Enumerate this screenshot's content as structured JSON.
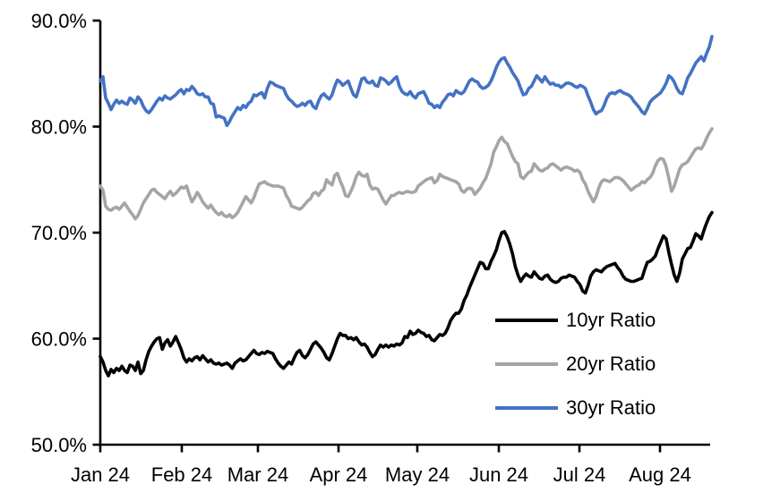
{
  "chart_data": {
    "type": "line",
    "title": "",
    "background": "#FFFFFF",
    "grid": false,
    "legend_position": "inside-lower-right",
    "x_axis": {
      "tick_labels": [
        "Jan 24",
        "Feb 24",
        "Mar 24",
        "Apr 24",
        "May 24",
        "Jun 24",
        "Jul 24",
        "Aug 24"
      ],
      "unit": "month",
      "points_frequency": "daily samples, Jan 2024 through late Aug 2024"
    },
    "y_axis": {
      "tick_labels": [
        "90.0%",
        "80.0%",
        "70.0%",
        "60.0%",
        "50.0%"
      ],
      "tick_values": [
        90,
        80,
        70,
        60,
        50
      ],
      "min": 50,
      "max": 90,
      "format": "percent"
    },
    "series": [
      {
        "name": "10yr Ratio",
        "color": "#000000",
        "values": [
          58.3,
          57.8,
          57.0,
          56.5,
          57.1,
          56.8,
          57.2,
          57.0,
          57.4,
          57.0,
          56.8,
          57.5,
          57.4,
          57.0,
          57.8,
          56.7,
          57.0,
          58.0,
          58.8,
          59.3,
          59.7,
          60.0,
          60.1,
          59.0,
          59.6,
          59.9,
          59.3,
          59.7,
          60.2,
          59.6,
          59.0,
          58.2,
          57.8,
          58.1,
          57.9,
          58.2,
          58.3,
          58.0,
          58.4,
          58.1,
          57.8,
          58.0,
          57.7,
          57.6,
          57.7,
          57.5,
          57.6,
          57.7,
          57.5,
          57.2,
          57.7,
          57.9,
          58.1,
          57.9,
          58.0,
          58.3,
          58.6,
          58.9,
          58.6,
          58.5,
          58.7,
          58.6,
          58.8,
          58.7,
          58.6,
          58.1,
          57.7,
          57.4,
          57.2,
          57.5,
          57.8,
          57.6,
          58.2,
          58.7,
          58.9,
          58.4,
          58.2,
          58.5,
          59.0,
          59.5,
          59.7,
          59.4,
          59.1,
          58.7,
          58.2,
          58.0,
          58.6,
          59.3,
          60.0,
          60.5,
          60.3,
          60.3,
          60.0,
          60.1,
          59.9,
          60.1,
          59.7,
          59.4,
          59.5,
          59.2,
          58.7,
          58.3,
          58.5,
          59.0,
          59.4,
          59.2,
          59.4,
          59.2,
          59.4,
          59.3,
          59.5,
          59.4,
          59.6,
          60.2,
          60.1,
          60.7,
          60.4,
          60.5,
          60.8,
          60.6,
          60.5,
          60.2,
          60.3,
          59.9,
          59.8,
          60.1,
          60.4,
          60.3,
          60.5,
          61.0,
          61.7,
          62.1,
          62.4,
          62.4,
          62.8,
          63.6,
          64.1,
          64.8,
          65.4,
          66.0,
          66.6,
          67.2,
          67.1,
          66.6,
          66.6,
          67.3,
          67.8,
          68.4,
          69.3,
          70.0,
          70.1,
          69.6,
          68.9,
          68.0,
          66.8,
          66.0,
          65.4,
          65.8,
          66.1,
          65.9,
          65.8,
          66.3,
          66.0,
          65.7,
          65.6,
          65.9,
          66.0,
          65.6,
          65.4,
          65.3,
          65.4,
          65.7,
          65.8,
          65.8,
          66.0,
          65.9,
          65.8,
          65.4,
          65.1,
          64.5,
          64.3,
          65.0,
          65.9,
          66.3,
          66.5,
          66.4,
          66.3,
          66.6,
          66.8,
          66.9,
          67.0,
          67.1,
          66.7,
          66.4,
          65.9,
          65.6,
          65.5,
          65.4,
          65.4,
          65.5,
          65.6,
          65.7,
          66.5,
          67.2,
          67.3,
          67.5,
          67.8,
          68.5,
          69.1,
          69.7,
          69.4,
          68.1,
          67.0,
          66.0,
          65.4,
          66.2,
          67.5,
          68.0,
          68.5,
          68.6,
          69.2,
          69.9,
          69.7,
          69.4,
          70.2,
          70.9,
          71.5,
          71.9
        ]
      },
      {
        "name": "20yr Ratio",
        "color": "#A5A5A5",
        "values": [
          74.4,
          74.0,
          72.5,
          72.2,
          72.1,
          72.3,
          72.4,
          72.2,
          72.5,
          72.8,
          72.4,
          72.0,
          71.7,
          71.3,
          71.6,
          72.2,
          72.8,
          73.2,
          73.6,
          74.0,
          74.1,
          73.8,
          73.6,
          73.4,
          73.2,
          73.6,
          73.9,
          73.5,
          73.7,
          74.0,
          74.3,
          74.2,
          74.4,
          73.6,
          72.9,
          73.3,
          73.8,
          73.4,
          72.9,
          72.6,
          72.3,
          72.6,
          72.2,
          71.9,
          71.7,
          71.9,
          71.6,
          71.5,
          71.7,
          71.4,
          71.6,
          71.9,
          72.4,
          72.9,
          73.4,
          73.1,
          72.8,
          73.3,
          74.0,
          74.6,
          74.7,
          74.8,
          74.6,
          74.5,
          74.4,
          74.4,
          74.4,
          74.3,
          74.2,
          73.5,
          73.1,
          72.5,
          72.4,
          72.3,
          72.2,
          72.4,
          72.7,
          73.0,
          73.2,
          73.7,
          73.8,
          73.5,
          73.9,
          74.1,
          75.0,
          74.7,
          74.5,
          75.4,
          75.6,
          74.9,
          74.3,
          73.5,
          73.4,
          73.9,
          74.5,
          75.3,
          75.7,
          75.4,
          75.3,
          75.5,
          74.5,
          74.1,
          74.2,
          74.1,
          73.6,
          73.1,
          72.7,
          73.1,
          73.5,
          73.5,
          73.7,
          73.8,
          73.7,
          73.8,
          73.9,
          73.8,
          73.8,
          73.9,
          74.4,
          74.6,
          74.8,
          75.0,
          75.1,
          75.2,
          74.7,
          74.9,
          75.5,
          75.3,
          75.2,
          75.1,
          75.0,
          74.9,
          74.8,
          74.6,
          74.0,
          73.8,
          74.1,
          74.2,
          74.1,
          73.6,
          73.9,
          74.2,
          74.7,
          75.1,
          75.8,
          76.5,
          77.6,
          78.1,
          78.7,
          79.0,
          78.6,
          78.4,
          77.8,
          77.2,
          76.7,
          76.5,
          75.3,
          75.1,
          75.4,
          75.7,
          75.8,
          76.5,
          76.2,
          75.9,
          75.8,
          76.0,
          76.1,
          76.4,
          76.5,
          76.3,
          76.1,
          75.9,
          76.1,
          76.2,
          76.1,
          76.0,
          75.8,
          75.9,
          75.7,
          75.0,
          74.6,
          73.9,
          73.4,
          72.9,
          73.4,
          74.2,
          74.8,
          75.0,
          74.9,
          74.8,
          75.0,
          75.2,
          75.2,
          75.1,
          74.9,
          74.6,
          74.3,
          74.0,
          74.2,
          74.4,
          74.5,
          74.8,
          74.7,
          75.0,
          75.2,
          75.6,
          76.3,
          76.8,
          77.0,
          76.9,
          76.2,
          75.1,
          73.9,
          74.4,
          75.2,
          76.0,
          76.4,
          76.5,
          76.7,
          77.1,
          77.5,
          77.9,
          78.0,
          77.9,
          78.3,
          78.9,
          79.4,
          79.8
        ]
      },
      {
        "name": "30yr Ratio",
        "color": "#4472C4",
        "values": [
          84.3,
          84.7,
          82.7,
          82.2,
          81.6,
          82.1,
          82.5,
          82.2,
          82.4,
          82.2,
          82.1,
          82.7,
          82.5,
          82.2,
          82.8,
          82.5,
          81.9,
          81.5,
          81.3,
          81.6,
          82.0,
          82.4,
          82.7,
          82.5,
          82.9,
          82.7,
          82.6,
          82.8,
          83.0,
          83.3,
          83.5,
          83.1,
          83.5,
          83.4,
          83.8,
          83.5,
          83.1,
          83.0,
          83.1,
          82.8,
          82.8,
          82.2,
          82.1,
          80.9,
          81.0,
          80.9,
          80.8,
          80.1,
          80.5,
          81.0,
          81.4,
          81.8,
          81.6,
          82.0,
          81.8,
          82.2,
          82.4,
          83.0,
          82.9,
          83.1,
          83.2,
          82.7,
          83.6,
          84.2,
          84.1,
          83.9,
          83.8,
          83.7,
          83.6,
          83.0,
          82.6,
          82.4,
          82.1,
          81.9,
          82.0,
          82.2,
          82.0,
          82.3,
          82.4,
          81.9,
          81.7,
          82.4,
          82.9,
          83.1,
          82.8,
          82.6,
          83.0,
          83.8,
          84.4,
          84.2,
          83.9,
          84.1,
          84.3,
          83.6,
          83.0,
          82.8,
          83.6,
          84.5,
          84.6,
          84.2,
          84.1,
          84.3,
          83.9,
          83.8,
          84.6,
          84.5,
          84.3,
          84.0,
          84.2,
          84.5,
          84.7,
          83.8,
          83.3,
          83.1,
          83.0,
          83.3,
          82.9,
          82.7,
          83.1,
          83.2,
          83.3,
          82.8,
          82.2,
          82.1,
          81.8,
          82.0,
          81.8,
          82.3,
          82.6,
          83.0,
          83.1,
          82.9,
          83.4,
          83.2,
          83.1,
          83.3,
          83.8,
          84.3,
          84.5,
          84.3,
          84.2,
          83.8,
          83.6,
          83.7,
          83.9,
          84.3,
          84.9,
          85.6,
          86.1,
          86.4,
          86.5,
          86.0,
          85.6,
          85.1,
          84.7,
          84.3,
          83.6,
          83.0,
          83.1,
          83.6,
          83.8,
          84.3,
          84.8,
          84.5,
          84.2,
          84.7,
          84.3,
          84.0,
          84.1,
          83.9,
          83.9,
          83.7,
          83.9,
          84.1,
          84.1,
          84.0,
          83.8,
          83.7,
          83.9,
          83.8,
          83.6,
          82.9,
          82.3,
          81.6,
          81.2,
          81.4,
          81.5,
          82.0,
          82.7,
          83.1,
          83.2,
          83.1,
          83.3,
          83.4,
          83.2,
          83.1,
          83.0,
          82.8,
          82.4,
          82.1,
          81.8,
          81.4,
          81.2,
          81.7,
          82.3,
          82.6,
          82.8,
          83.0,
          83.2,
          83.6,
          84.1,
          84.8,
          84.6,
          84.2,
          83.6,
          83.2,
          83.1,
          83.8,
          84.6,
          85.0,
          85.5,
          86.0,
          86.3,
          86.6,
          86.2,
          86.9,
          87.5,
          88.5
        ]
      }
    ]
  }
}
